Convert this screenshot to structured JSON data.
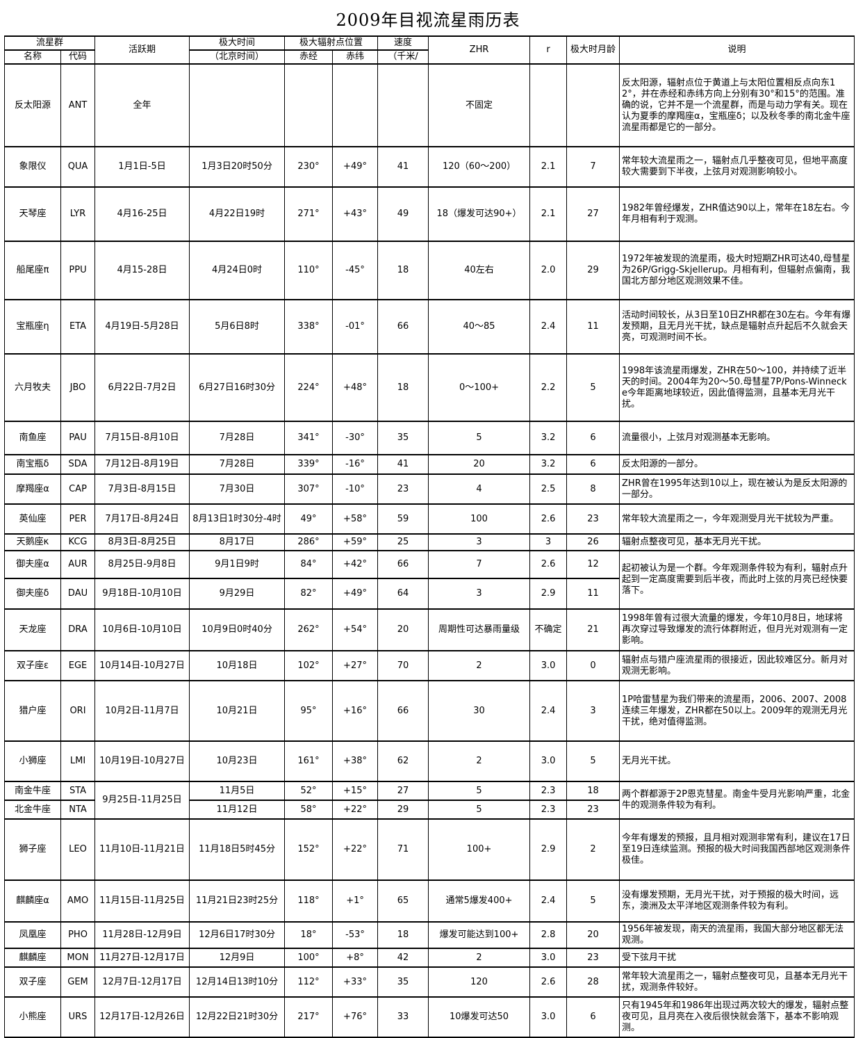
{
  "title": "2009年目视流星雨历表",
  "table": {
    "headers": {
      "group": "流星群",
      "name": "名称",
      "code": "代码",
      "active": "活跃期",
      "max_time_line1": "极大时间",
      "max_time_line2": "（北京时间）",
      "radiant": "极大辐射点位置",
      "ra": "赤经",
      "dec": "赤纬",
      "speed_line1": "速度",
      "speed_line2": "（千米/",
      "zhr": "ZHR",
      "r": "r",
      "moon_age": "极大时月龄",
      "notes": "说明"
    },
    "column_order": [
      "name",
      "code",
      "active",
      "max_time",
      "ra",
      "dec",
      "speed",
      "zhr",
      "r",
      "moon_age",
      "desc"
    ],
    "rows": [
      {
        "name": "反太阳源",
        "code": "ANT",
        "active": "全年",
        "max_time": "",
        "ra": "",
        "dec": "",
        "speed": "",
        "zhr": "不固定",
        "r": "",
        "moon_age": "",
        "desc": "反太阳源，辐射点位于黄道上与太阳位置相反点向东12°，并在赤经和赤纬方向上分别有30°和15°的范围。准确的说，它并不是一个流星群，而是与动力学有关。现在认为夏季的摩羯座α，宝瓶座δ；以及秋冬季的南北金牛座流星雨都是它的一部分。"
      },
      {
        "name": "象限仪",
        "code": "QUA",
        "active": "1月1日-5日",
        "max_time": "1月3日20时50分",
        "ra": "230°",
        "dec": "+49°",
        "speed": "41",
        "zhr": "120（60～200）",
        "r": "2.1",
        "moon_age": "7",
        "desc": "常年较大流星雨之一，辐射点几乎整夜可见，但地平高度较大需要到下半夜，上弦月对观测影响较小。"
      },
      {
        "name": "天琴座",
        "code": "LYR",
        "active": "4月16-25日",
        "max_time": "4月22日19时",
        "ra": "271°",
        "dec": "+43°",
        "speed": "49",
        "zhr": "18（爆发可达90+）",
        "r": "2.1",
        "moon_age": "27",
        "desc": "1982年曾经爆发，ZHR值达90以上，常年在18左右。今年月相有利于观测。"
      },
      {
        "name": "船尾座π",
        "code": "PPU",
        "active": "4月15-28日",
        "max_time": "4月24日0时",
        "ra": "110°",
        "dec": "-45°",
        "speed": "18",
        "zhr": "40左右",
        "r": "2.0",
        "moon_age": "29",
        "desc": "1972年被发现的流星雨，极大时短期ZHR可达40,母彗星为26P/Grigg-Skjellerup。月相有利，但辐射点偏南，我国北方部分地区观测效果不佳。"
      },
      {
        "name": "宝瓶座η",
        "code": "ETA",
        "active": "4月19日-5月28日",
        "max_time": "5月6日8时",
        "ra": "338°",
        "dec": "-01°",
        "speed": "66",
        "zhr": "40～85",
        "r": "2.4",
        "moon_age": "11",
        "desc": "活动时间较长，从3日至10日ZHR都在30左右。今年有爆发预期，且无月光干扰，缺点是辐射点升起后不久就会天亮，可观测时间不长。"
      },
      {
        "name": "六月牧夫",
        "code": "JBO",
        "active": "6月22日-7月2日",
        "max_time": "6月27日16时30分",
        "ra": "224°",
        "dec": "+48°",
        "speed": "18",
        "zhr": "0～100+",
        "r": "2.2",
        "moon_age": "5",
        "desc": "1998年该流星雨爆发，ZHR在50～100，并持续了近半天的时间。2004年为20～50.母彗星7P/Pons-Winnecke今年距离地球较近，因此值得监测，且基本无月光干扰。"
      },
      {
        "name": "南鱼座",
        "code": "PAU",
        "active": "7月15日-8月10日",
        "max_time": "7月28日",
        "ra": "341°",
        "dec": "-30°",
        "speed": "35",
        "zhr": "5",
        "r": "3.2",
        "moon_age": "6",
        "desc": "流量很小，上弦月对观测基本无影响。"
      },
      {
        "name": "南宝瓶δ",
        "code": "SDA",
        "active": "7月12日-8月19日",
        "max_time": "7月28日",
        "ra": "339°",
        "dec": "-16°",
        "speed": "41",
        "zhr": "20",
        "r": "3.2",
        "moon_age": "6",
        "desc": "反太阳源的一部分。"
      },
      {
        "name": "摩羯座α",
        "code": "CAP",
        "active": "7月3日-8月15日",
        "max_time": "7月30日",
        "ra": "307°",
        "dec": "-10°",
        "speed": "23",
        "zhr": "4",
        "r": "2.5",
        "moon_age": "8",
        "desc": "ZHR曾在1995年达到10以上，现在被认为是反太阳源的一部分。"
      },
      {
        "name": "英仙座",
        "code": "PER",
        "active": "7月17日-8月24日",
        "max_time": "8月13日1时30分-4时",
        "ra": "49°",
        "dec": "+58°",
        "speed": "59",
        "zhr": "100",
        "r": "2.6",
        "moon_age": "23",
        "desc": "常年较大流星雨之一，今年观测受月光干扰较为严重。"
      },
      {
        "name": "天鹅座κ",
        "code": "KCG",
        "active": "8月3日-8月25日",
        "max_time": "8月17日",
        "ra": "286°",
        "dec": "+59°",
        "speed": "25",
        "zhr": "3",
        "r": "3",
        "moon_age": "26",
        "desc": "辐射点整夜可见，基本无月光干扰。"
      },
      {
        "name": "御夫座α",
        "code": "AUR",
        "active": "8月25日-9月8日",
        "max_time": "9月1日9时",
        "ra": "84°",
        "dec": "+42°",
        "speed": "66",
        "zhr": "7",
        "r": "2.6",
        "moon_age": "12",
        "desc": "起初被认为是一个群。今年观测条件较为有利，辐射点升起到一定高度需要到后半夜，而此时上弦的月亮已经快要落下。",
        "spans": {
          "desc": 2
        }
      },
      {
        "name": "御夫座δ",
        "code": "DAU",
        "active": "9月18日-10月10日",
        "max_time": "9月29日",
        "ra": "82°",
        "dec": "+49°",
        "speed": "64",
        "zhr": "3",
        "r": "2.9",
        "moon_age": "11",
        "skip": [
          "desc"
        ]
      },
      {
        "name": "天龙座",
        "code": "DRA",
        "active": "10月6日-10月10日",
        "max_time": "10月9日0时40分",
        "ra": "262°",
        "dec": "+54°",
        "speed": "20",
        "zhr": "周期性可达暴雨量级",
        "r": "不确定",
        "moon_age": "21",
        "desc": "1998年曾有过很大流量的爆发，今年10月8日，地球将再次穿过导致爆发的流行体群附近，但月光对观测有一定影响。"
      },
      {
        "name": "双子座ε",
        "code": "EGE",
        "active": "10月14日-10月27日",
        "max_time": "10月18日",
        "ra": "102°",
        "dec": "+27°",
        "speed": "70",
        "zhr": "2",
        "r": "3.0",
        "moon_age": "0",
        "desc": "辐射点与猎户座流星雨的很接近，因此较难区分。新月对观测无影响。"
      },
      {
        "name": "猎户座",
        "code": "ORI",
        "active": "10月2日-11月7日",
        "max_time": "10月21日",
        "ra": "95°",
        "dec": "+16°",
        "speed": "66",
        "zhr": "30",
        "r": "2.4",
        "moon_age": "3",
        "desc": "1P哈雷彗星为我们带来的流星雨，2006、2007、2008连续三年爆发，ZHR都在50以上。2009年的观测无月光干扰，绝对值得监测。"
      },
      {
        "name": "小狮座",
        "code": "LMI",
        "active": "10月19日-10月27日",
        "max_time": "10月23日",
        "ra": "161°",
        "dec": "+38°",
        "speed": "62",
        "zhr": "2",
        "r": "3.0",
        "moon_age": "5",
        "desc": "无月光干扰。"
      },
      {
        "name": "南金牛座",
        "code": "STA",
        "active": "9月25日-11月25日",
        "max_time": "11月5日",
        "ra": "52°",
        "dec": "+15°",
        "speed": "27",
        "zhr": "5",
        "r": "2.3",
        "moon_age": "18",
        "desc": "两个群都源于2P恩克彗星。南金牛受月光影响严重，北金牛的观测条件较为有利。",
        "spans": {
          "active": 2,
          "desc": 2
        }
      },
      {
        "name": "北金牛座",
        "code": "NTA",
        "max_time": "11月12日",
        "ra": "58°",
        "dec": "+22°",
        "speed": "29",
        "zhr": "5",
        "r": "2.3",
        "moon_age": "23",
        "skip": [
          "active",
          "desc"
        ]
      },
      {
        "name": "狮子座",
        "code": "LEO",
        "active": "11月10日-11月21日",
        "max_time": "11月18日5时45分",
        "ra": "152°",
        "dec": "+22°",
        "speed": "71",
        "zhr": "100+",
        "r": "2.9",
        "moon_age": "2",
        "desc": "今年有爆发的预报，且月相对观测非常有利，建议在17日至19日连续监测。预报的极大时间我国西部地区观测条件极佳。"
      },
      {
        "name": "麒麟座α",
        "code": "AMO",
        "active": "11月15日-11月25日",
        "max_time": "11月21日23时25分",
        "ra": "118°",
        "dec": "+1°",
        "speed": "65",
        "zhr": "通常5爆发400+",
        "r": "2.4",
        "moon_age": "5",
        "desc": "没有爆发预期，无月光干扰，对于预报的极大时间，远东，澳洲及太平洋地区观测条件较为有利。"
      },
      {
        "name": "凤凰座",
        "code": "PHO",
        "active": "11月28日-12月9日",
        "max_time": "12月6日17时30分",
        "ra": "18°",
        "dec": "-53°",
        "speed": "18",
        "zhr": "爆发可能达到100+",
        "r": "2.8",
        "moon_age": "20",
        "desc": "1956年被发现，南天的流星雨，我国大部分地区都无法观测。"
      },
      {
        "name": "麒麟座",
        "code": "MON",
        "active": "11月27日-12月17日",
        "max_time": "12月9日",
        "ra": "100°",
        "dec": "+8°",
        "speed": "42",
        "zhr": "2",
        "r": "3.0",
        "moon_age": "23",
        "desc": "受下弦月干扰"
      },
      {
        "name": "双子座",
        "code": "GEM",
        "active": "12月7日-12月17日",
        "max_time": "12月14日13时10分",
        "ra": "112°",
        "dec": "+33°",
        "speed": "35",
        "zhr": "120",
        "r": "2.6",
        "moon_age": "28",
        "desc": "常年较大流星雨之一，辐射点整夜可见，且基本无月光干扰，观测条件较好。"
      },
      {
        "name": "小熊座",
        "code": "URS",
        "active": "12月17日-12月26日",
        "max_time": "12月22日21时30分",
        "ra": "217°",
        "dec": "+76°",
        "speed": "33",
        "zhr": "10爆发可达50",
        "r": "3.0",
        "moon_age": "6",
        "desc": "只有1945年和1986年出现过两次较大的爆发，辐射点整夜可见，且月亮在入夜后很快就会落下，基本不影响观测。"
      }
    ]
  }
}
